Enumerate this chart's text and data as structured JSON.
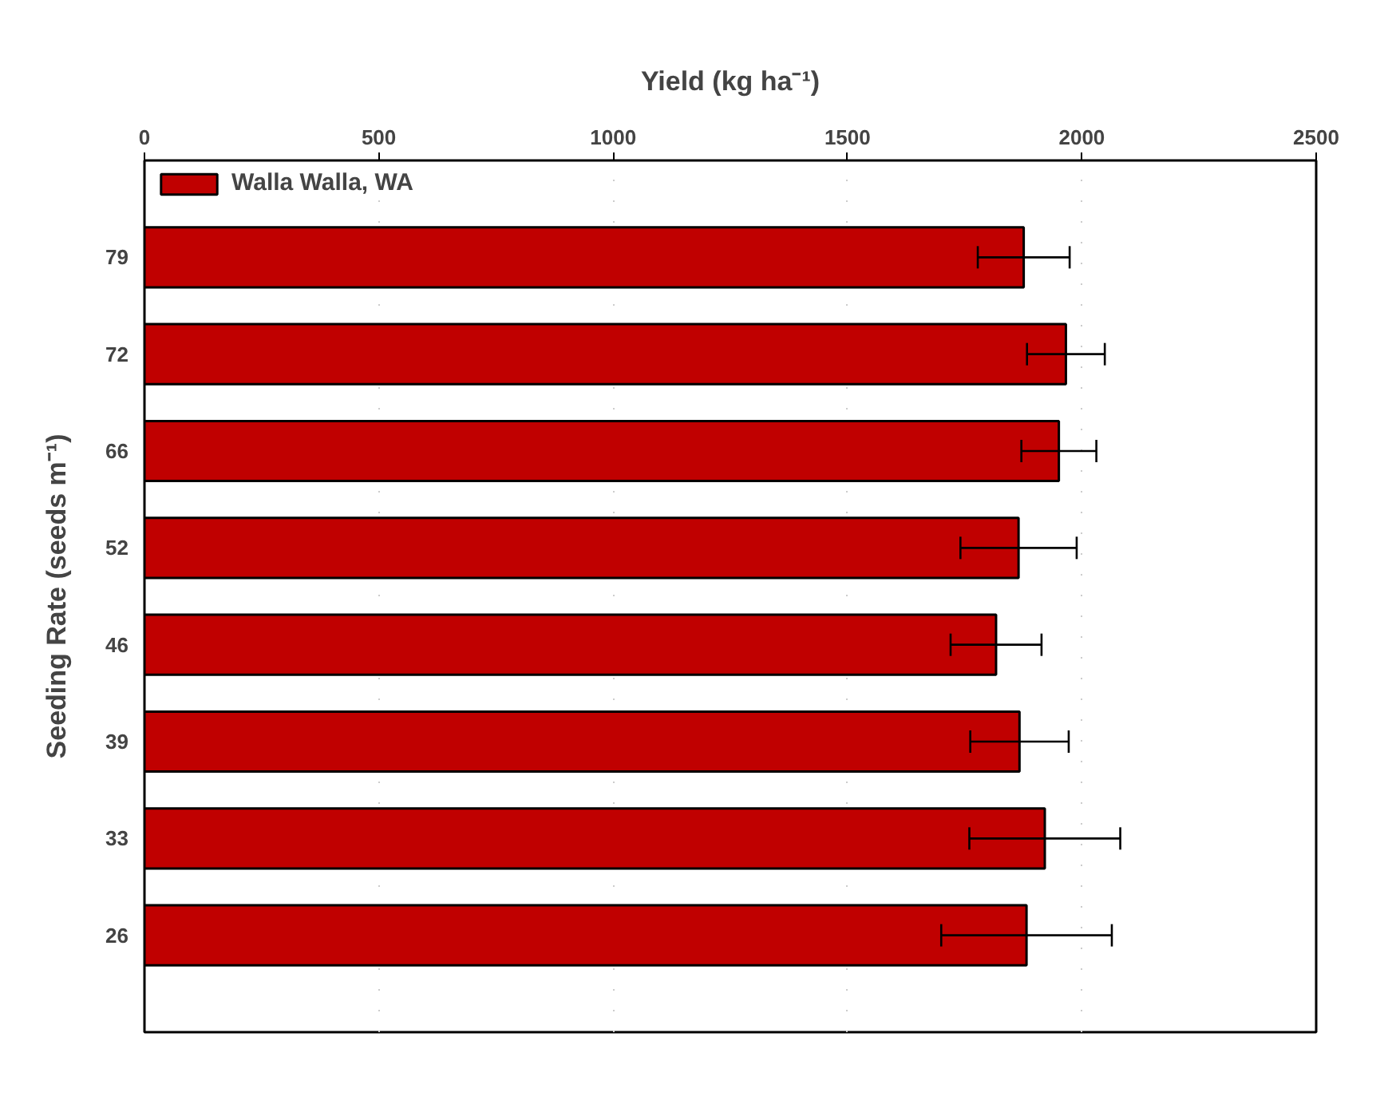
{
  "chart_data": {
    "type": "bar",
    "orientation": "horizontal",
    "xlabel": "Yield (kg ha⁻¹)",
    "ylabel": "Seeding Rate (seeds m⁻¹)",
    "categories": [
      "79",
      "72",
      "66",
      "52",
      "46",
      "39",
      "33",
      "26"
    ],
    "series": [
      {
        "name": "Walla Walla, WA",
        "color": "#c00000",
        "values": [
          1876,
          1966,
          1951,
          1865,
          1817,
          1867,
          1921,
          1882
        ],
        "errors": [
          98,
          83,
          80,
          124,
          97,
          105,
          161,
          182
        ]
      }
    ],
    "xlim": [
      0,
      2500
    ],
    "xticks": [
      0,
      500,
      1000,
      1500,
      2000,
      2500
    ],
    "grid": "x",
    "legend": "top left"
  }
}
